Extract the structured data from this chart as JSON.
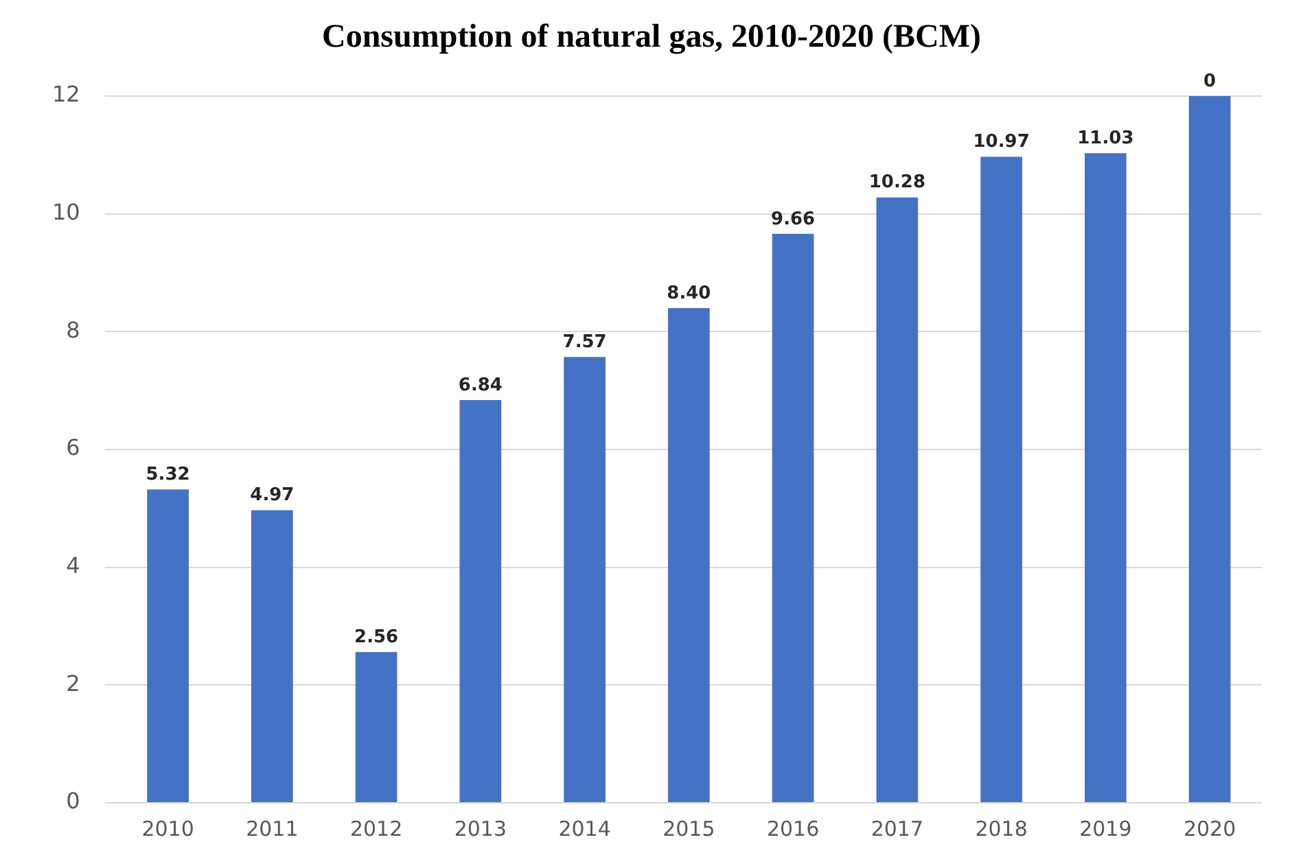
{
  "chart_data": {
    "type": "bar",
    "title": "Consumption of natural gas, 2010-2020 (BCM)",
    "categories": [
      "2010",
      "2011",
      "2012",
      "2013",
      "2014",
      "2015",
      "2016",
      "2017",
      "2018",
      "2019",
      "2020"
    ],
    "values": [
      5.32,
      4.97,
      2.56,
      6.84,
      7.57,
      8.4,
      9.66,
      10.28,
      10.97,
      11.03,
      12
    ],
    "value_labels": [
      "5.32",
      "4.97",
      "2.56",
      "6.84",
      "7.57",
      "8.40",
      "9.66",
      "10.28",
      "10.97",
      "11.03",
      null
    ],
    "annotations": [
      {
        "text": "0",
        "x": "2020",
        "y": 12
      }
    ],
    "color": "#4472c4",
    "ylim": [
      0,
      12
    ],
    "yticks": [
      0,
      2,
      4,
      6,
      8,
      10,
      12
    ],
    "grid": "y"
  }
}
